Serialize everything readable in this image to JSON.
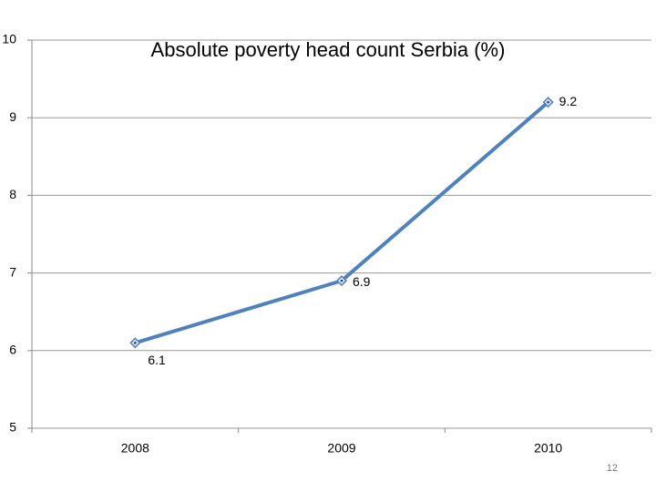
{
  "chart_data": {
    "type": "line",
    "title": "Absolute poverty head count Serbia (%)",
    "categories": [
      "2008",
      "2009",
      "2010"
    ],
    "series": [
      {
        "name": "Absolute poverty head count Serbia (%)",
        "color": "#4f81bd",
        "values": [
          6.1,
          6.9,
          9.2
        ]
      }
    ],
    "ylim": [
      5,
      10
    ],
    "yticks": [
      5,
      6,
      7,
      8,
      9,
      10
    ],
    "grid": true
  },
  "slide_number": "12"
}
